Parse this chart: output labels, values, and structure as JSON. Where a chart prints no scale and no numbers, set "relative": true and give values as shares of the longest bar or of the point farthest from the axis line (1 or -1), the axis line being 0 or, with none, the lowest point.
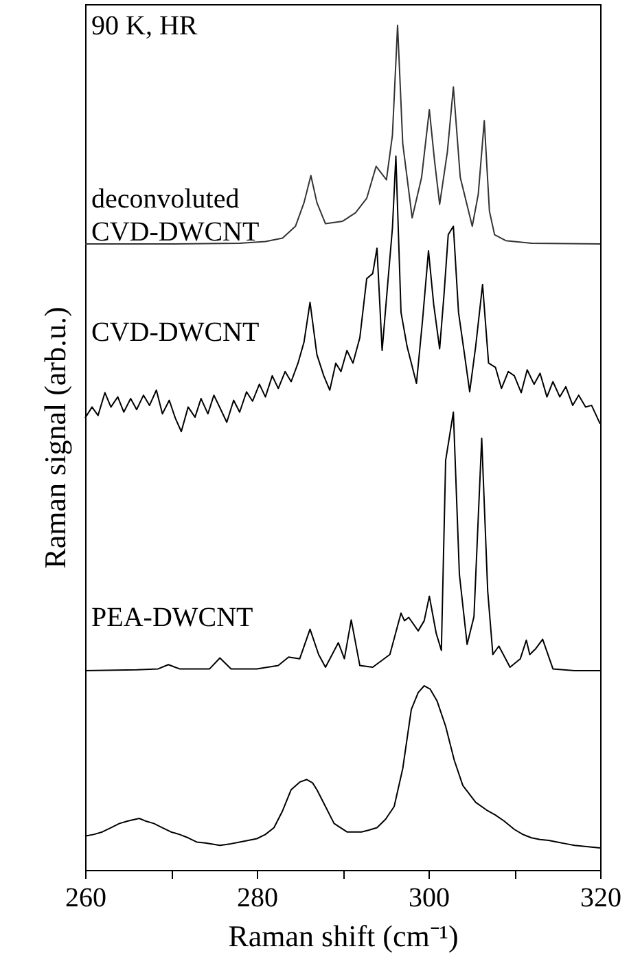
{
  "chart_data": {
    "type": "line",
    "xlabel": "Raman shift (cm⁻¹)",
    "ylabel": "Raman signal (arb.u.)",
    "relative": true,
    "xlim": [
      260,
      320
    ],
    "xticks": [
      260,
      {
        "value": 270,
        "label": null
      },
      280,
      {
        "value": 290,
        "label": null
      },
      300,
      {
        "value": 310,
        "label": null
      },
      320
    ],
    "marker": "none",
    "line_style": "solid",
    "annotations": [
      "90 K, HR"
    ],
    "series": [
      {
        "name": "deconvoluted CVD-DWCNT",
        "color": "#333333",
        "x": [
          260,
          270,
          278,
          281,
          283,
          284.5,
          285.5,
          286.3,
          287,
          288,
          290,
          291.5,
          292.8,
          293.9,
          295.1,
          295.8,
          296.4,
          297,
          298.1,
          299.2,
          300.1,
          300.7,
          301.3,
          302.2,
          302.9,
          303.7,
          305.1,
          305.8,
          306.5,
          307.1,
          307.7,
          309,
          312,
          320
        ],
        "values": [
          0.741,
          0.741,
          0.742,
          0.744,
          0.748,
          0.762,
          0.79,
          0.822,
          0.79,
          0.765,
          0.768,
          0.778,
          0.795,
          0.833,
          0.817,
          0.87,
          1.0,
          0.86,
          0.772,
          0.82,
          0.9,
          0.84,
          0.788,
          0.85,
          0.927,
          0.82,
          0.762,
          0.8,
          0.887,
          0.78,
          0.752,
          0.745,
          0.742,
          0.741
        ]
      },
      {
        "name": "CVD-DWCNT",
        "color": "#000000",
        "x": [
          260,
          260.8,
          261.5,
          262.3,
          263,
          263.8,
          264.5,
          265.3,
          266,
          266.8,
          267.5,
          268.3,
          269,
          269.8,
          270.5,
          271.2,
          272,
          272.8,
          273.5,
          274.3,
          275,
          275.8,
          276.5,
          277.3,
          278,
          278.8,
          279.5,
          280.3,
          281,
          281.8,
          282.5,
          283.3,
          284,
          284.8,
          285.5,
          286.2,
          287,
          287.8,
          288.5,
          289.2,
          289.8,
          290.5,
          291.2,
          292,
          292.8,
          293.5,
          294,
          294.6,
          295.3,
          295.8,
          296.2,
          296.8,
          297.5,
          298.6,
          299.3,
          300,
          300.6,
          301.3,
          301.8,
          302.3,
          302.9,
          303.5,
          304.2,
          304.8,
          305.5,
          306.3,
          307,
          307.8,
          308.5,
          309.3,
          310,
          310.8,
          311.5,
          312.3,
          313,
          313.8,
          314.5,
          315.3,
          316,
          316.8,
          317.5,
          318.3,
          319,
          320
        ],
        "values": [
          0.535,
          0.548,
          0.538,
          0.565,
          0.548,
          0.56,
          0.542,
          0.558,
          0.545,
          0.562,
          0.55,
          0.568,
          0.54,
          0.556,
          0.535,
          0.519,
          0.548,
          0.536,
          0.558,
          0.54,
          0.562,
          0.545,
          0.53,
          0.556,
          0.542,
          0.566,
          0.555,
          0.575,
          0.56,
          0.585,
          0.57,
          0.59,
          0.578,
          0.6,
          0.625,
          0.672,
          0.61,
          0.585,
          0.568,
          0.6,
          0.59,
          0.615,
          0.6,
          0.63,
          0.7,
          0.706,
          0.736,
          0.615,
          0.7,
          0.76,
          0.845,
          0.66,
          0.62,
          0.576,
          0.65,
          0.733,
          0.67,
          0.617,
          0.68,
          0.752,
          0.762,
          0.66,
          0.61,
          0.566,
          0.62,
          0.693,
          0.6,
          0.595,
          0.57,
          0.59,
          0.585,
          0.565,
          0.592,
          0.575,
          0.588,
          0.56,
          0.578,
          0.56,
          0.572,
          0.55,
          0.562,
          0.548,
          0.55,
          0.528
        ]
      },
      {
        "name": "PEA-DWCNT",
        "color": "#000000",
        "x": [
          260,
          266,
          268.5,
          269.7,
          271,
          274.5,
          275.7,
          277,
          280,
          282.5,
          283.7,
          285,
          286.2,
          287.2,
          288,
          289.5,
          290.2,
          291,
          292,
          293.5,
          295.5,
          296.8,
          297.2,
          297.7,
          298.8,
          299.5,
          300.1,
          300.9,
          301.5,
          302,
          302.9,
          303.6,
          304.5,
          305.3,
          306.2,
          306.9,
          307.5,
          308.2,
          309.5,
          310.7,
          311.4,
          311.8,
          312.5,
          313.3,
          314.5,
          317,
          320
        ],
        "values": [
          0.236,
          0.237,
          0.238,
          0.243,
          0.238,
          0.238,
          0.251,
          0.238,
          0.238,
          0.242,
          0.252,
          0.25,
          0.285,
          0.255,
          0.24,
          0.269,
          0.25,
          0.296,
          0.242,
          0.24,
          0.255,
          0.304,
          0.295,
          0.299,
          0.283,
          0.295,
          0.324,
          0.28,
          0.26,
          0.485,
          0.542,
          0.35,
          0.267,
          0.3,
          0.511,
          0.33,
          0.255,
          0.265,
          0.24,
          0.25,
          0.272,
          0.255,
          0.262,
          0.273,
          0.238,
          0.236,
          0.236
        ]
      },
      {
        "color": "#000000",
        "x": [
          260,
          261,
          262,
          263,
          264,
          265,
          266.3,
          267,
          268,
          269,
          270,
          271,
          272,
          273,
          274,
          275.7,
          277,
          278,
          279,
          280,
          281,
          282,
          283,
          284,
          285,
          285.8,
          286.5,
          287,
          288,
          289,
          290.5,
          292.2,
          293,
          294,
          295,
          296,
          297,
          298,
          298.8,
          299.5,
          300.2,
          301,
          302,
          303,
          304,
          305.5,
          306.9,
          307.8,
          308.8,
          310,
          311,
          312,
          313,
          314,
          315,
          316,
          317,
          318,
          319,
          320
        ],
        "values": [
          0.04,
          0.042,
          0.045,
          0.05,
          0.055,
          0.058,
          0.061,
          0.058,
          0.055,
          0.05,
          0.045,
          0.042,
          0.038,
          0.033,
          0.032,
          0.029,
          0.031,
          0.033,
          0.035,
          0.037,
          0.042,
          0.05,
          0.07,
          0.095,
          0.104,
          0.107,
          0.103,
          0.095,
          0.075,
          0.055,
          0.045,
          0.045,
          0.047,
          0.05,
          0.06,
          0.075,
          0.12,
          0.19,
          0.21,
          0.218,
          0.214,
          0.2,
          0.17,
          0.13,
          0.1,
          0.08,
          0.07,
          0.065,
          0.058,
          0.048,
          0.042,
          0.038,
          0.036,
          0.035,
          0.033,
          0.031,
          0.029,
          0.028,
          0.027,
          0.026
        ]
      }
    ]
  }
}
